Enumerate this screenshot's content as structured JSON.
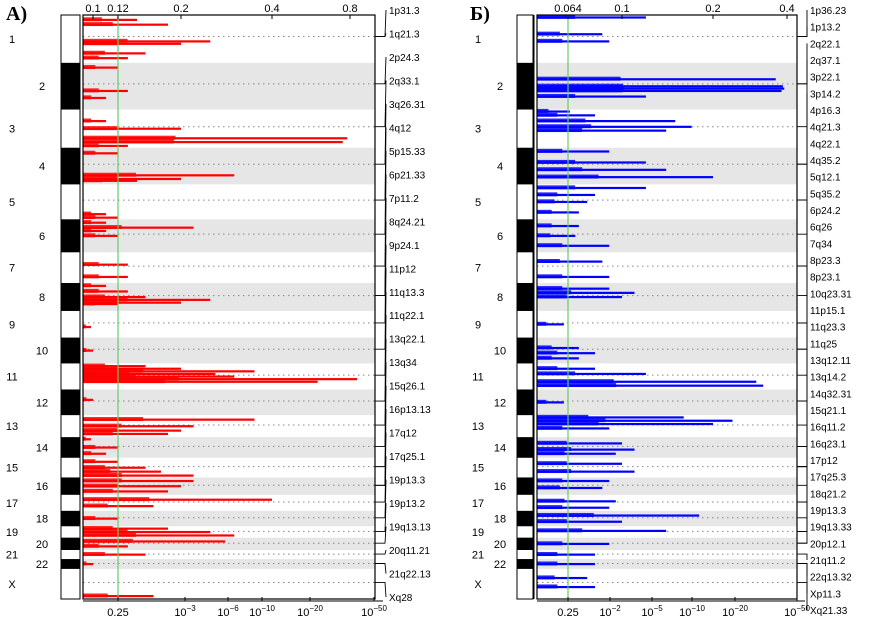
{
  "chart_data": [
    {
      "panel": "A)",
      "type": "bar",
      "orientation": "horizontal",
      "series_color": "#ff0000",
      "threshold_color": "#66cc66",
      "top_axis": {
        "ticks": [
          "0.1",
          "0.12",
          "0.2",
          "0.4",
          "0.8"
        ]
      },
      "bottom_axis": {
        "ticks": [
          {
            "base": "0.25",
            "exp": ""
          },
          {
            "base": "10",
            "exp": "−3"
          },
          {
            "base": "10",
            "exp": "−6"
          },
          {
            "base": "10",
            "exp": "−10"
          },
          {
            "base": "10",
            "exp": "−20"
          },
          {
            "base": "10",
            "exp": "−50"
          }
        ]
      },
      "threshold": {
        "top_value": 0.12,
        "bottom_value": "0.25"
      },
      "chromosomes": [
        "1",
        "2",
        "3",
        "4",
        "5",
        "6",
        "7",
        "8",
        "9",
        "10",
        "11",
        "12",
        "13",
        "14",
        "15",
        "16",
        "17",
        "18",
        "19",
        "20",
        "21",
        "22",
        "X"
      ],
      "chromosome_sizes": [
        248,
        242,
        198,
        190,
        181,
        171,
        159,
        145,
        138,
        134,
        135,
        133,
        114,
        107,
        102,
        90,
        83,
        80,
        59,
        64,
        47,
        51,
        156
      ],
      "loci": [
        "1p31.3",
        "1q21.3",
        "2p24.3",
        "2q33.1",
        "3q26.31",
        "4q12",
        "5p15.33",
        "6p21.33",
        "7p11.2",
        "8q24.21",
        "9p24.1",
        "11p12",
        "11q13.3",
        "11q22.1",
        "13q22.1",
        "13q34",
        "15q26.1",
        "16p13.13",
        "17q12",
        "17q25.1",
        "19p13.3",
        "19p13.2",
        "19q13.13",
        "20q11.21",
        "21q22.13",
        "Xq28"
      ],
      "peaks": [
        {
          "chrom": 0,
          "pos": 0.1,
          "value": 0.14
        },
        {
          "chrom": 0,
          "pos": 0.2,
          "value": 0.18
        },
        {
          "chrom": 0,
          "pos": 0.55,
          "value": 0.25
        },
        {
          "chrom": 0,
          "pos": 0.6,
          "value": 0.2
        },
        {
          "chrom": 0,
          "pos": 0.8,
          "value": 0.15
        },
        {
          "chrom": 0,
          "pos": 0.9,
          "value": 0.13
        },
        {
          "chrom": 1,
          "pos": 0.1,
          "value": 0.12
        },
        {
          "chrom": 1,
          "pos": 0.6,
          "value": 0.13
        },
        {
          "chrom": 1,
          "pos": 0.75,
          "value": 0.11
        },
        {
          "chrom": 2,
          "pos": 0.3,
          "value": 0.11
        },
        {
          "chrom": 2,
          "pos": 0.5,
          "value": 0.2
        },
        {
          "chrom": 2,
          "pos": 0.75,
          "value": 0.78
        },
        {
          "chrom": 2,
          "pos": 0.85,
          "value": 0.75
        },
        {
          "chrom": 2,
          "pos": 0.95,
          "value": 0.13
        },
        {
          "chrom": 3,
          "pos": 0.15,
          "value": 0.12
        },
        {
          "chrom": 3,
          "pos": 0.75,
          "value": 0.3
        },
        {
          "chrom": 3,
          "pos": 0.85,
          "value": 0.2
        },
        {
          "chrom": 3,
          "pos": 0.9,
          "value": 0.14
        },
        {
          "chrom": 4,
          "pos": 0.85,
          "value": 0.11
        },
        {
          "chrom": 4,
          "pos": 0.95,
          "value": 0.12
        },
        {
          "chrom": 5,
          "pos": 0.1,
          "value": 0.11
        },
        {
          "chrom": 5,
          "pos": 0.25,
          "value": 0.22
        },
        {
          "chrom": 5,
          "pos": 0.35,
          "value": 0.11
        },
        {
          "chrom": 5,
          "pos": 0.5,
          "value": 0.12
        },
        {
          "chrom": 6,
          "pos": 0.4,
          "value": 0.13
        },
        {
          "chrom": 6,
          "pos": 0.8,
          "value": 0.13
        },
        {
          "chrom": 7,
          "pos": 0.1,
          "value": 0.11
        },
        {
          "chrom": 7,
          "pos": 0.3,
          "value": 0.13
        },
        {
          "chrom": 7,
          "pos": 0.5,
          "value": 0.15
        },
        {
          "chrom": 7,
          "pos": 0.6,
          "value": 0.25
        },
        {
          "chrom": 7,
          "pos": 0.7,
          "value": 0.2
        },
        {
          "chrom": 7,
          "pos": 0.75,
          "value": 0.12
        },
        {
          "chrom": 8,
          "pos": 0.6,
          "value": 0.09
        },
        {
          "chrom": 9,
          "pos": 0.5,
          "value": 0.1
        },
        {
          "chrom": 10,
          "pos": 0.1,
          "value": 0.15
        },
        {
          "chrom": 10,
          "pos": 0.2,
          "value": 0.2
        },
        {
          "chrom": 10,
          "pos": 0.3,
          "value": 0.35
        },
        {
          "chrom": 10,
          "pos": 0.4,
          "value": 0.26
        },
        {
          "chrom": 10,
          "pos": 0.5,
          "value": 0.3
        },
        {
          "chrom": 10,
          "pos": 0.6,
          "value": 0.86
        },
        {
          "chrom": 10,
          "pos": 0.7,
          "value": 0.6
        },
        {
          "chrom": 11,
          "pos": 0.4,
          "value": 0.1
        },
        {
          "chrom": 12,
          "pos": 0.2,
          "value": 0.35
        },
        {
          "chrom": 12,
          "pos": 0.5,
          "value": 0.22
        },
        {
          "chrom": 12,
          "pos": 0.7,
          "value": 0.2
        },
        {
          "chrom": 12,
          "pos": 0.85,
          "value": 0.18
        },
        {
          "chrom": 13,
          "pos": 0.1,
          "value": 0.09
        },
        {
          "chrom": 13,
          "pos": 0.5,
          "value": 0.12
        },
        {
          "chrom": 13,
          "pos": 0.8,
          "value": 0.11
        },
        {
          "chrom": 14,
          "pos": 0.2,
          "value": 0.12
        },
        {
          "chrom": 14,
          "pos": 0.5,
          "value": 0.15
        },
        {
          "chrom": 14,
          "pos": 0.7,
          "value": 0.17
        },
        {
          "chrom": 14,
          "pos": 0.9,
          "value": 0.22
        },
        {
          "chrom": 15,
          "pos": 0.2,
          "value": 0.22
        },
        {
          "chrom": 15,
          "pos": 0.5,
          "value": 0.2
        },
        {
          "chrom": 15,
          "pos": 0.8,
          "value": 0.18
        },
        {
          "chrom": 16,
          "pos": 0.3,
          "value": 0.4
        },
        {
          "chrom": 16,
          "pos": 0.7,
          "value": 0.16
        },
        {
          "chrom": 17,
          "pos": 0.5,
          "value": 0.12
        },
        {
          "chrom": 18,
          "pos": 0.2,
          "value": 0.18
        },
        {
          "chrom": 18,
          "pos": 0.5,
          "value": 0.25
        },
        {
          "chrom": 18,
          "pos": 0.8,
          "value": 0.3
        },
        {
          "chrom": 19,
          "pos": 0.3,
          "value": 0.28
        },
        {
          "chrom": 19,
          "pos": 0.7,
          "value": 0.13
        },
        {
          "chrom": 20,
          "pos": 0.5,
          "value": 0.15
        },
        {
          "chrom": 21,
          "pos": 0.5,
          "value": 0.1
        },
        {
          "chrom": 22,
          "pos": 0.9,
          "value": 0.16
        }
      ]
    },
    {
      "panel": "Б)",
      "type": "bar",
      "orientation": "horizontal",
      "series_color": "#0000ff",
      "threshold_color": "#66cc66",
      "top_axis": {
        "ticks": [
          "0.064",
          "0.1",
          "0.2",
          "0.4"
        ]
      },
      "bottom_axis": {
        "ticks": [
          {
            "base": "0.25",
            "exp": ""
          },
          {
            "base": "10",
            "exp": "−2"
          },
          {
            "base": "10",
            "exp": "−5"
          },
          {
            "base": "10",
            "exp": "−10"
          },
          {
            "base": "10",
            "exp": "−20"
          },
          {
            "base": "10",
            "exp": "−50"
          }
        ]
      },
      "threshold": {
        "top_value": 0.064,
        "bottom_value": "0.25"
      },
      "chromosomes": [
        "1",
        "2",
        "3",
        "4",
        "5",
        "6",
        "7",
        "8",
        "9",
        "10",
        "11",
        "12",
        "13",
        "14",
        "15",
        "16",
        "17",
        "18",
        "19",
        "20",
        "21",
        "22",
        "X"
      ],
      "chromosome_sizes": [
        248,
        242,
        198,
        190,
        181,
        171,
        159,
        145,
        138,
        134,
        135,
        133,
        114,
        107,
        102,
        90,
        83,
        80,
        59,
        64,
        47,
        51,
        156
      ],
      "loci": [
        "1p36.23",
        "1p13.2",
        "2q22.1",
        "2q37.1",
        "3p22.1",
        "3p14.2",
        "4p16.3",
        "4q21.3",
        "4q22.1",
        "4q35.2",
        "5q12.1",
        "5q35.2",
        "6p24.2",
        "6q26",
        "7q34",
        "8p23.3",
        "8p23.1",
        "10q23.31",
        "11p15.1",
        "11q23.3",
        "11q25",
        "13q12.11",
        "13q14.2",
        "14q32.31",
        "15q21.1",
        "16q11.2",
        "16q23.1",
        "17p12",
        "17q25.3",
        "18q21.2",
        "19p13.3",
        "19q13.33",
        "20p12.1",
        "21q11.2",
        "22q13.32",
        "Xp11.3",
        "Xq21.33"
      ],
      "peaks": [
        {
          "chrom": 0,
          "pos": 0.05,
          "value": 0.12
        },
        {
          "chrom": 0,
          "pos": 0.4,
          "value": 0.085
        },
        {
          "chrom": 0,
          "pos": 0.55,
          "value": 0.09
        },
        {
          "chrom": 1,
          "pos": 0.35,
          "value": 0.36
        },
        {
          "chrom": 1,
          "pos": 0.5,
          "value": 0.385
        },
        {
          "chrom": 1,
          "pos": 0.55,
          "value": 0.39
        },
        {
          "chrom": 1,
          "pos": 0.6,
          "value": 0.38
        },
        {
          "chrom": 1,
          "pos": 0.72,
          "value": 0.12
        },
        {
          "chrom": 2,
          "pos": 0.05,
          "value": 0.065
        },
        {
          "chrom": 2,
          "pos": 0.15,
          "value": 0.08
        },
        {
          "chrom": 2,
          "pos": 0.3,
          "value": 0.15
        },
        {
          "chrom": 2,
          "pos": 0.45,
          "value": 0.17
        },
        {
          "chrom": 2,
          "pos": 0.55,
          "value": 0.14
        },
        {
          "chrom": 3,
          "pos": 0.1,
          "value": 0.09
        },
        {
          "chrom": 3,
          "pos": 0.4,
          "value": 0.12
        },
        {
          "chrom": 3,
          "pos": 0.6,
          "value": 0.14
        },
        {
          "chrom": 3,
          "pos": 0.8,
          "value": 0.2
        },
        {
          "chrom": 4,
          "pos": 0.1,
          "value": 0.12
        },
        {
          "chrom": 4,
          "pos": 0.3,
          "value": 0.08
        },
        {
          "chrom": 4,
          "pos": 0.5,
          "value": 0.075
        },
        {
          "chrom": 4,
          "pos": 0.8,
          "value": 0.07
        },
        {
          "chrom": 5,
          "pos": 0.2,
          "value": 0.07
        },
        {
          "chrom": 5,
          "pos": 0.5,
          "value": 0.068
        },
        {
          "chrom": 5,
          "pos": 0.8,
          "value": 0.09
        },
        {
          "chrom": 6,
          "pos": 0.3,
          "value": 0.085
        },
        {
          "chrom": 6,
          "pos": 0.8,
          "value": 0.09
        },
        {
          "chrom": 7,
          "pos": 0.2,
          "value": 0.09
        },
        {
          "chrom": 7,
          "pos": 0.35,
          "value": 0.11
        },
        {
          "chrom": 7,
          "pos": 0.5,
          "value": 0.1
        },
        {
          "chrom": 8,
          "pos": 0.5,
          "value": 0.06
        },
        {
          "chrom": 9,
          "pos": 0.4,
          "value": 0.07
        },
        {
          "chrom": 9,
          "pos": 0.6,
          "value": 0.08
        },
        {
          "chrom": 9,
          "pos": 0.8,
          "value": 0.07
        },
        {
          "chrom": 10,
          "pos": 0.2,
          "value": 0.08
        },
        {
          "chrom": 10,
          "pos": 0.4,
          "value": 0.12
        },
        {
          "chrom": 10,
          "pos": 0.7,
          "value": 0.3
        },
        {
          "chrom": 10,
          "pos": 0.85,
          "value": 0.32
        },
        {
          "chrom": 11,
          "pos": 0.5,
          "value": 0.06
        },
        {
          "chrom": 12,
          "pos": 0.1,
          "value": 0.16
        },
        {
          "chrom": 12,
          "pos": 0.25,
          "value": 0.24
        },
        {
          "chrom": 12,
          "pos": 0.4,
          "value": 0.2
        },
        {
          "chrom": 12,
          "pos": 0.6,
          "value": 0.09
        },
        {
          "chrom": 13,
          "pos": 0.3,
          "value": 0.1
        },
        {
          "chrom": 13,
          "pos": 0.6,
          "value": 0.11
        },
        {
          "chrom": 13,
          "pos": 0.8,
          "value": 0.095
        },
        {
          "chrom": 14,
          "pos": 0.3,
          "value": 0.1
        },
        {
          "chrom": 14,
          "pos": 0.7,
          "value": 0.11
        },
        {
          "chrom": 15,
          "pos": 0.2,
          "value": 0.09
        },
        {
          "chrom": 15,
          "pos": 0.6,
          "value": 0.085
        },
        {
          "chrom": 16,
          "pos": 0.4,
          "value": 0.095
        },
        {
          "chrom": 16,
          "pos": 0.8,
          "value": 0.09
        },
        {
          "chrom": 17,
          "pos": 0.3,
          "value": 0.18
        },
        {
          "chrom": 17,
          "pos": 0.7,
          "value": 0.1
        },
        {
          "chrom": 18,
          "pos": 0.4,
          "value": 0.14
        },
        {
          "chrom": 19,
          "pos": 0.5,
          "value": 0.09
        },
        {
          "chrom": 20,
          "pos": 0.5,
          "value": 0.08
        },
        {
          "chrom": 21,
          "pos": 0.5,
          "value": 0.08
        },
        {
          "chrom": 22,
          "pos": 0.3,
          "value": 0.075
        },
        {
          "chrom": 22,
          "pos": 0.6,
          "value": 0.08
        }
      ]
    }
  ]
}
